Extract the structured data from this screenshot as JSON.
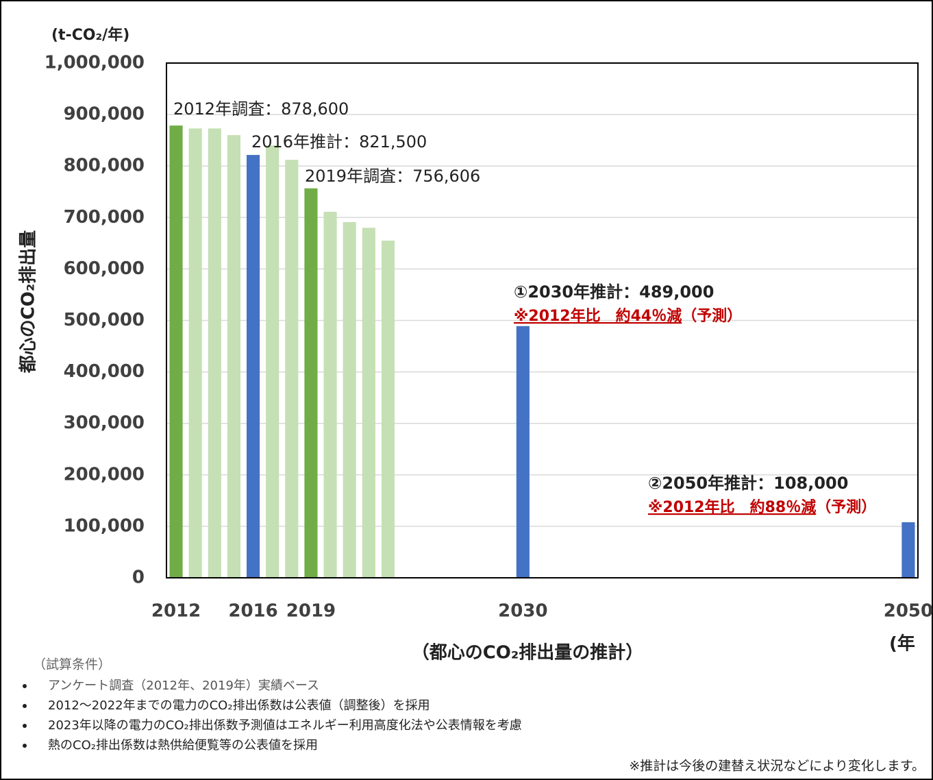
{
  "chart_data": {
    "type": "bar",
    "unit_label": "(t-CO₂/年)",
    "y_label": "都心のCO₂排出量",
    "x_label": "（都心のCO₂排出量の推計）",
    "x_unit": "(年",
    "x": [
      2012,
      2013,
      2014,
      2015,
      2016,
      2017,
      2018,
      2019,
      2020,
      2021,
      2022,
      2023,
      2030,
      2050
    ],
    "values": [
      878600,
      873000,
      873000,
      860000,
      821500,
      840000,
      812000,
      756606,
      711000,
      691000,
      680000,
      655000,
      489000,
      108000
    ],
    "colors": [
      "#70ad47",
      "#c5e0b4",
      "#c5e0b4",
      "#c5e0b4",
      "#4472c4",
      "#c5e0b4",
      "#c5e0b4",
      "#70ad47",
      "#c5e0b4",
      "#c5e0b4",
      "#c5e0b4",
      "#c5e0b4",
      "#4472c4",
      "#4472c4"
    ],
    "xlim": [
      2011.5,
      2050.5
    ],
    "xticks": [
      2012,
      2016,
      2019,
      2030,
      2050
    ],
    "ylim": [
      0,
      1000000
    ],
    "yticks": [
      0,
      {
        "value": 100000,
        "label": "100,000"
      },
      {
        "value": 200000,
        "label": "200,000"
      },
      {
        "value": 300000,
        "label": "300,000"
      },
      {
        "value": 400000,
        "label": "400,000"
      },
      {
        "value": 500000,
        "label": "500,000"
      },
      {
        "value": 600000,
        "label": "600,000"
      },
      {
        "value": 700000,
        "label": "700,000"
      },
      {
        "value": 800000,
        "label": "800,000"
      },
      {
        "value": 900000,
        "label": "900,000"
      },
      {
        "value": 1000000,
        "label": "1,000,000"
      }
    ],
    "grid": true,
    "annotations": [
      {
        "text": "2012年調査：878,600"
      },
      {
        "text": "2016年推計：821,500"
      },
      {
        "text": "2019年調査：756,606"
      },
      {
        "text": "①2030年推計：489,000",
        "note": "※2012年比　約44％減",
        "note_suffix": "（予測）"
      },
      {
        "text": "②2050年推計：108,000",
        "note": "※2012年比　約88％減",
        "note_suffix": "（予測）"
      }
    ]
  },
  "notes": {
    "heading": "（試算条件）",
    "items": [
      "アンケート調査（2012年、2019年）実績ベース",
      "2012～2022年までの電力のCO₂排出係数は公表値（調整後）を採用",
      "2023年以降の電力のCO₂排出係数予測値はエネルギー利用高度化法や公表情報を考慮",
      "熱のCO₂排出係数は熱供給便覧等の公表値を採用"
    ],
    "footnote": "※推計は今後の建替え状況などにより変化します。"
  }
}
